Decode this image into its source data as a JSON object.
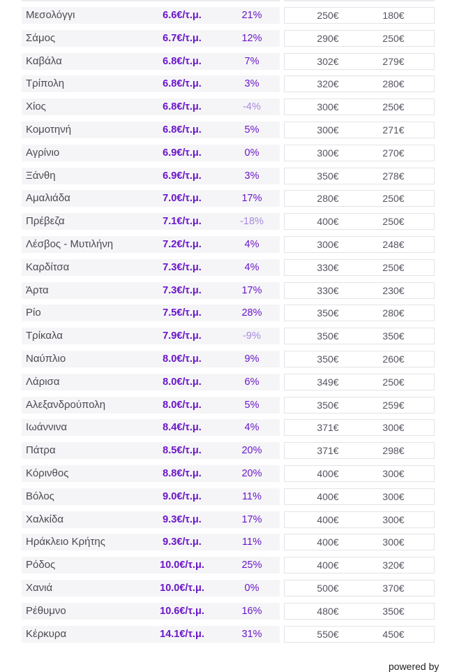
{
  "colors": {
    "accent": "#6a16c8",
    "negative": "#a888e0",
    "row_bg": "#f5f5f7"
  },
  "rows": [
    {
      "city": "Μεσολόγγι",
      "price": "6.6€/τ.μ.",
      "change": "21%",
      "neg": false,
      "v1": "250€",
      "v2": "180€"
    },
    {
      "city": "Σάμος",
      "price": "6.7€/τ.μ.",
      "change": "12%",
      "neg": false,
      "v1": "290€",
      "v2": "250€"
    },
    {
      "city": "Καβάλα",
      "price": "6.8€/τ.μ.",
      "change": "7%",
      "neg": false,
      "v1": "302€",
      "v2": "279€"
    },
    {
      "city": "Τρίπολη",
      "price": "6.8€/τ.μ.",
      "change": "3%",
      "neg": false,
      "v1": "320€",
      "v2": "280€"
    },
    {
      "city": "Χίος",
      "price": "6.8€/τ.μ.",
      "change": "-4%",
      "neg": true,
      "v1": "300€",
      "v2": "250€"
    },
    {
      "city": "Κομοτηνή",
      "price": "6.8€/τ.μ.",
      "change": "5%",
      "neg": false,
      "v1": "300€",
      "v2": "271€"
    },
    {
      "city": "Αγρίνιο",
      "price": "6.9€/τ.μ.",
      "change": "0%",
      "neg": false,
      "v1": "300€",
      "v2": "270€"
    },
    {
      "city": "Ξάνθη",
      "price": "6.9€/τ.μ.",
      "change": "3%",
      "neg": false,
      "v1": "350€",
      "v2": "278€"
    },
    {
      "city": "Αμαλιάδα",
      "price": "7.0€/τ.μ.",
      "change": "17%",
      "neg": false,
      "v1": "280€",
      "v2": "250€"
    },
    {
      "city": "Πρέβεζα",
      "price": "7.1€/τ.μ.",
      "change": "-18%",
      "neg": true,
      "v1": "400€",
      "v2": "250€"
    },
    {
      "city": "Λέσβος - Μυτιλήνη",
      "price": "7.2€/τ.μ.",
      "change": "4%",
      "neg": false,
      "v1": "300€",
      "v2": "248€"
    },
    {
      "city": "Καρδίτσα",
      "price": "7.3€/τ.μ.",
      "change": "4%",
      "neg": false,
      "v1": "330€",
      "v2": "250€"
    },
    {
      "city": "Άρτα",
      "price": "7.3€/τ.μ.",
      "change": "17%",
      "neg": false,
      "v1": "330€",
      "v2": "230€"
    },
    {
      "city": "Ρίο",
      "price": "7.5€/τ.μ.",
      "change": "28%",
      "neg": false,
      "v1": "350€",
      "v2": "280€"
    },
    {
      "city": "Τρίκαλα",
      "price": "7.9€/τ.μ.",
      "change": "-9%",
      "neg": true,
      "v1": "350€",
      "v2": "350€"
    },
    {
      "city": "Ναύπλιο",
      "price": "8.0€/τ.μ.",
      "change": "9%",
      "neg": false,
      "v1": "350€",
      "v2": "260€"
    },
    {
      "city": "Λάρισα",
      "price": "8.0€/τ.μ.",
      "change": "6%",
      "neg": false,
      "v1": "349€",
      "v2": "250€"
    },
    {
      "city": "Αλεξανδρούπολη",
      "price": "8.0€/τ.μ.",
      "change": "5%",
      "neg": false,
      "v1": "350€",
      "v2": "259€"
    },
    {
      "city": "Ιωάννινα",
      "price": "8.4€/τ.μ.",
      "change": "4%",
      "neg": false,
      "v1": "371€",
      "v2": "300€"
    },
    {
      "city": "Πάτρα",
      "price": "8.5€/τ.μ.",
      "change": "20%",
      "neg": false,
      "v1": "371€",
      "v2": "298€"
    },
    {
      "city": "Κόρινθος",
      "price": "8.8€/τ.μ.",
      "change": "20%",
      "neg": false,
      "v1": "400€",
      "v2": "300€"
    },
    {
      "city": "Βόλος",
      "price": "9.0€/τ.μ.",
      "change": "11%",
      "neg": false,
      "v1": "400€",
      "v2": "300€"
    },
    {
      "city": "Χαλκίδα",
      "price": "9.3€/τ.μ.",
      "change": "17%",
      "neg": false,
      "v1": "400€",
      "v2": "300€"
    },
    {
      "city": "Ηράκλειο Κρήτης",
      "price": "9.3€/τ.μ.",
      "change": "11%",
      "neg": false,
      "v1": "400€",
      "v2": "300€"
    },
    {
      "city": "Ρόδος",
      "price": "10.0€/τ.μ.",
      "change": "25%",
      "neg": false,
      "v1": "400€",
      "v2": "320€"
    },
    {
      "city": "Χανιά",
      "price": "10.0€/τ.μ.",
      "change": "0%",
      "neg": false,
      "v1": "500€",
      "v2": "370€"
    },
    {
      "city": "Ρέθυμνο",
      "price": "10.6€/τ.μ.",
      "change": "16%",
      "neg": false,
      "v1": "480€",
      "v2": "350€"
    },
    {
      "city": "Κέρκυρα",
      "price": "14.1€/τ.μ.",
      "change": "31%",
      "neg": false,
      "v1": "550€",
      "v2": "450€"
    }
  ],
  "footer": {
    "powered_by": "powered by"
  }
}
